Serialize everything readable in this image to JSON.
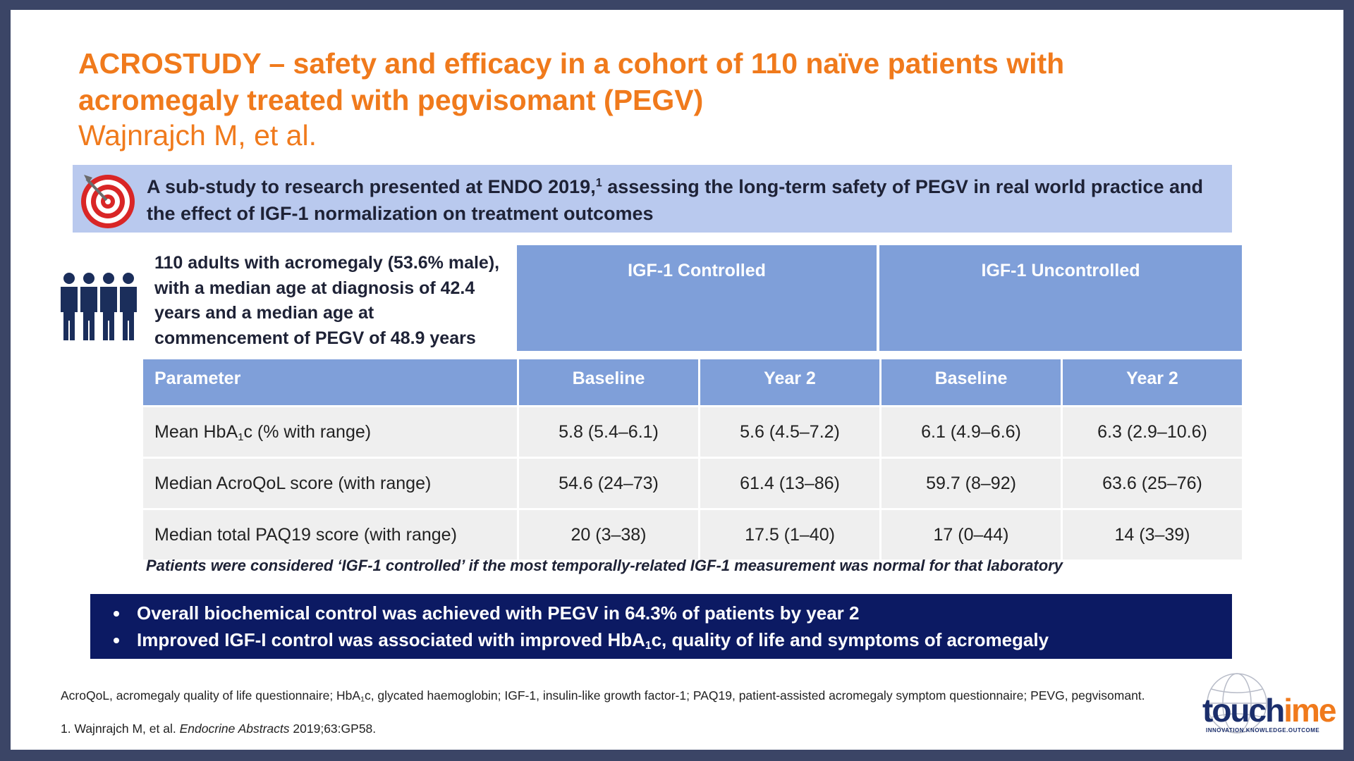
{
  "slide": {
    "title_line1": "ACROSTUDY – safety and efficacy in a cohort of 110 naïve patients with",
    "title_line2": "acromegaly treated with pegvisomant (PEGV)",
    "authors": "Wajnrajch M, et al.",
    "objective": {
      "icon": "target-icon",
      "text_before": "A sub-study to research presented at ENDO 2019,",
      "ref_sup": "1",
      "text_after": " assessing the long-term safety of PEGV in real world practice and the effect of IGF-1 normalization on treatment outcomes"
    },
    "cohort": {
      "icon": "people-icon",
      "text": "110 adults with acromegaly (53.6% male), with a median age at diagnosis of 42.4 years and a median age at commencement of PEGV of 48.9 years"
    },
    "table": {
      "group_headers": [
        "IGF-1 Controlled",
        "IGF-1 Uncontrolled"
      ],
      "columns": [
        "Parameter",
        "Baseline",
        "Year 2",
        "Baseline",
        "Year 2"
      ],
      "rows": [
        {
          "param_pre": "Mean HbA",
          "param_sub": "1",
          "param_post": "c (% with range)",
          "values": [
            "5.8 (5.4–6.1)",
            "5.6 (4.5–7.2)",
            "6.1 (4.9–6.6)",
            "6.3 (2.9–10.6)"
          ]
        },
        {
          "param_pre": "Median AcroQoL score (with range)",
          "param_sub": "",
          "param_post": "",
          "values": [
            "54.6 (24–73)",
            "61.4 (13–86)",
            "59.7 (8–92)",
            "63.6 (25–76)"
          ]
        },
        {
          "param_pre": "Median total PAQ19 score (with range)",
          "param_sub": "",
          "param_post": "",
          "values": [
            "20 (3–38)",
            "17.5 (1–40)",
            "17 (0–44)",
            "14 (3–39)"
          ]
        }
      ],
      "footnote": "Patients were considered ‘IGF-1 controlled’ if the most temporally-related IGF-1 measurement was normal for that laboratory"
    },
    "conclusions": {
      "bullet1": "Overall biochemical control was achieved with PEGV in 64.3% of patients by year 2",
      "bullet2_pre": "Improved IGF-I control was associated with improved HbA",
      "bullet2_sub": "1",
      "bullet2_post": "c, quality of life and symptoms of acromegaly"
    },
    "abbreviations": {
      "pre": "AcroQoL, acromegaly quality of life questionnaire; HbA",
      "sub": "1",
      "post": "c, glycated haemoglobin; IGF-1, insulin-like growth factor-1; PAQ19, patient-assisted acromegaly symptom questionnaire; PEVG, pegvisomant."
    },
    "reference": {
      "pre": "1. Wajnrajch M, et al. ",
      "journal": "Endocrine Abstracts",
      "post": " 2019;63:GP58."
    },
    "logo": {
      "part1": "touch",
      "part2": "ime",
      "tagline": "INNOVATION.KNOWLEDGE.OUTCOME"
    },
    "colors": {
      "accent_orange": "#f07a1c",
      "header_blue": "#7f9fd9",
      "objective_bg": "#b9c9ee",
      "conclusion_navy": "#0c1a63",
      "people_icon": "#1b2e5b",
      "target_red": "#d92626"
    }
  }
}
